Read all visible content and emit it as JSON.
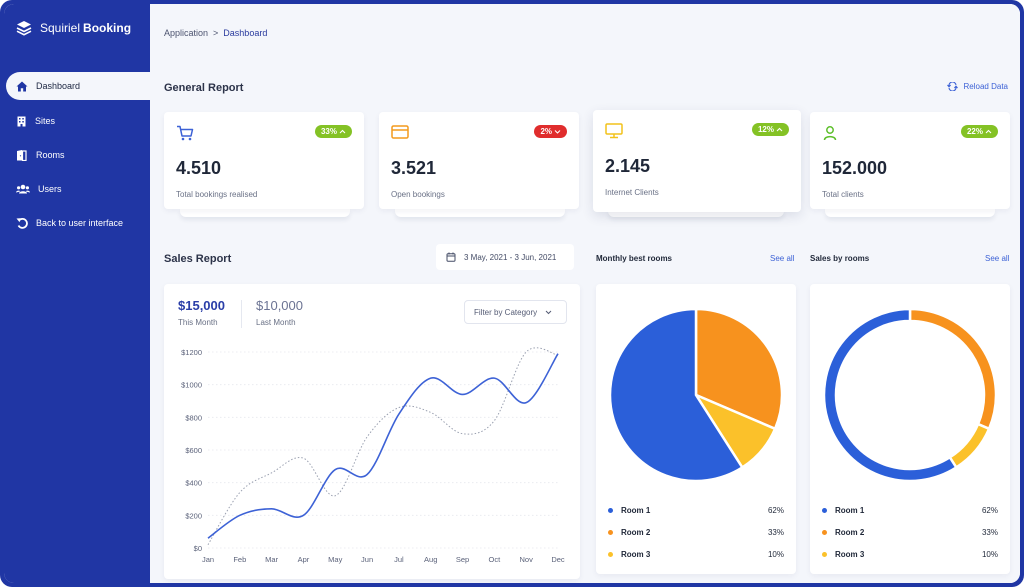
{
  "app": {
    "name_regular": "Squiriel",
    "name_bold": "Booking"
  },
  "sidebar": {
    "items": [
      {
        "label": "Dashboard",
        "icon": "home-icon"
      },
      {
        "label": "Sites",
        "icon": "building-icon"
      },
      {
        "label": "Rooms",
        "icon": "door-icon"
      },
      {
        "label": "Users",
        "icon": "users-icon"
      },
      {
        "label": "Back to user interface",
        "icon": "undo-icon"
      }
    ]
  },
  "breadcrumb": {
    "root": "Application",
    "separator": ">",
    "current": "Dashboard"
  },
  "general": {
    "title": "General Report",
    "reload_label": "Reload Data"
  },
  "stats": [
    {
      "value": "4.510",
      "label": "Total bookings realised",
      "badge": "33%",
      "trend": "up",
      "icon": "cart-icon",
      "icon_color": "#3d62d6",
      "badge_color": "#84c225"
    },
    {
      "value": "3.521",
      "label": "Open bookings",
      "badge": "2%",
      "trend": "down",
      "icon": "card-icon",
      "icon_color": "#f39a1d",
      "badge_color": "#e02d2d"
    },
    {
      "value": "2.145",
      "label": "Internet Clients",
      "badge": "12%",
      "trend": "up",
      "icon": "monitor-icon",
      "icon_color": "#f2c21b",
      "badge_color": "#84c225"
    },
    {
      "value": "152.000",
      "label": "Total clients",
      "badge": "22%",
      "trend": "up",
      "icon": "user-icon",
      "icon_color": "#5cbf2a",
      "badge_color": "#84c225"
    }
  ],
  "sales": {
    "title": "Sales Report",
    "date_range": "3 May, 2021 - 3 Jun, 2021",
    "this_month_value": "$15,000",
    "this_month_label": "This Month",
    "last_month_value": "$10,000",
    "last_month_label": "Last Month",
    "filter_label": "Filter by Category"
  },
  "monthly": {
    "title": "Monthly best rooms",
    "see_all": "See all"
  },
  "byrooms": {
    "title": "Sales by rooms",
    "see_all": "See all"
  },
  "colors": {
    "primary": "#2036a4",
    "blue": "#2b5fd9",
    "orange": "#f7921e",
    "yellow": "#fbc12a",
    "accent": "#3d62d6"
  },
  "chart_data": [
    {
      "type": "line",
      "categories": [
        "Jan",
        "Feb",
        "Mar",
        "Apr",
        "May",
        "Jun",
        "Jul",
        "Aug",
        "Sep",
        "Oct",
        "Nov",
        "Dec"
      ],
      "yticks": [
        "$0",
        "$200",
        "$400",
        "$600",
        "$800",
        "$1000",
        "$1200"
      ],
      "ylim": [
        0,
        1200
      ],
      "grid": true,
      "series": [
        {
          "style": "solid",
          "color": "#3d62d6",
          "values": [
            60,
            200,
            240,
            200,
            480,
            450,
            820,
            1040,
            940,
            1040,
            890,
            1190
          ]
        },
        {
          "style": "dotted",
          "color": "#9aa0b0",
          "values": [
            20,
            340,
            460,
            550,
            320,
            680,
            860,
            830,
            700,
            780,
            1200,
            1180
          ]
        }
      ]
    },
    {
      "type": "pie",
      "title": "Monthly best rooms",
      "labels": [
        "Room 1",
        "Room 2",
        "Room 3"
      ],
      "percent_labels": [
        "62%",
        "33%",
        "10%"
      ],
      "values": [
        62,
        33,
        10
      ],
      "colors": [
        "#2b5fd9",
        "#f7921e",
        "#fbc12a"
      ]
    },
    {
      "type": "donut",
      "title": "Sales by rooms",
      "labels": [
        "Room 1",
        "Room 2",
        "Room 3"
      ],
      "percent_labels": [
        "62%",
        "33%",
        "10%"
      ],
      "values": [
        62,
        33,
        10
      ],
      "colors": [
        "#2b5fd9",
        "#f7921e",
        "#fbc12a"
      ]
    }
  ]
}
